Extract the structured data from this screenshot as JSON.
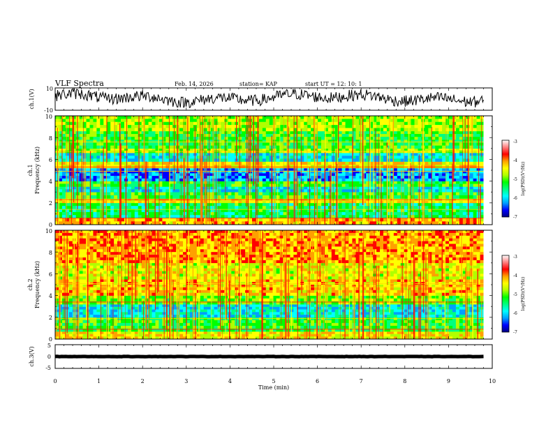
{
  "header": {
    "title": "VLF Spectra",
    "date": "Feb. 14, 2026",
    "station": "station= KAP",
    "start_time": "start  UT =   12: 10: 1"
  },
  "chart_data": [
    {
      "type": "line",
      "name": "ch1-waveform",
      "ylabel": "ch.1(V)",
      "ylim": [
        -10,
        10
      ],
      "yticks": [
        "10",
        "-10"
      ],
      "xlim": [
        0,
        10
      ],
      "data_extent_min": 9.8,
      "series": [
        {
          "name": "ch.1",
          "color": "#000000",
          "mean": 1,
          "amplitude": 8
        }
      ]
    },
    {
      "type": "heatmap",
      "name": "ch1-spectrogram",
      "ylabel_line1": "ch.1",
      "ylabel_line2": "Frequency (kHz)",
      "ylim": [
        0,
        10
      ],
      "yticks": [
        "0",
        "2",
        "4",
        "6",
        "8",
        "10"
      ],
      "xlim": [
        0,
        10
      ],
      "data_extent_min": 9.8,
      "colorbar": {
        "label": "log(PSD)(V²/Hz)",
        "range": [
          -7,
          -3
        ],
        "ticks": [
          "-3",
          "-4",
          "-5",
          "-6",
          "-7"
        ]
      },
      "bands": [
        {
          "from_khz": 0.0,
          "to_khz": 0.6,
          "level": 0.68
        },
        {
          "from_khz": 0.6,
          "to_khz": 2.0,
          "level": 0.4
        },
        {
          "from_khz": 2.0,
          "to_khz": 2.4,
          "level": 0.62
        },
        {
          "from_khz": 2.4,
          "to_khz": 3.0,
          "level": 0.45
        },
        {
          "from_khz": 3.0,
          "to_khz": 3.5,
          "level": 0.3
        },
        {
          "from_khz": 3.5,
          "to_khz": 4.0,
          "level": 0.45
        },
        {
          "from_khz": 4.0,
          "to_khz": 5.2,
          "level": 0.22
        },
        {
          "from_khz": 5.2,
          "to_khz": 5.8,
          "level": 0.62
        },
        {
          "from_khz": 5.8,
          "to_khz": 6.6,
          "level": 0.3
        },
        {
          "from_khz": 6.6,
          "to_khz": 7.0,
          "level": 0.55
        },
        {
          "from_khz": 7.0,
          "to_khz": 8.6,
          "level": 0.45
        },
        {
          "from_khz": 8.6,
          "to_khz": 10.0,
          "level": 0.55
        }
      ],
      "lines_khz": [
        0.6,
        1.4,
        2.1,
        2.3,
        4.9,
        5.3,
        6.7,
        7.6
      ]
    },
    {
      "type": "heatmap",
      "name": "ch2-spectrogram",
      "ylabel_line1": "ch.2",
      "ylabel_line2": "Frequency (kHz)",
      "ylim": [
        0,
        10
      ],
      "yticks": [
        "0",
        "2",
        "4",
        "6",
        "8",
        "10"
      ],
      "xlim": [
        0,
        10
      ],
      "data_extent_min": 9.8,
      "colorbar": {
        "label": "log(PSD)(V²/Hz)",
        "range": [
          -7,
          -3
        ],
        "ticks": [
          "-3",
          "-4",
          "-5",
          "-6",
          "-7"
        ]
      },
      "bands": [
        {
          "from_khz": 0.0,
          "to_khz": 0.7,
          "level": 0.62
        },
        {
          "from_khz": 0.7,
          "to_khz": 2.0,
          "level": 0.45
        },
        {
          "from_khz": 2.0,
          "to_khz": 3.2,
          "level": 0.3
        },
        {
          "from_khz": 3.2,
          "to_khz": 4.0,
          "level": 0.5
        },
        {
          "from_khz": 4.0,
          "to_khz": 5.5,
          "level": 0.66
        },
        {
          "from_khz": 5.5,
          "to_khz": 7.0,
          "level": 0.6
        },
        {
          "from_khz": 7.0,
          "to_khz": 10.0,
          "level": 0.7
        }
      ],
      "lines_khz": [
        0.9,
        1.9,
        3.4,
        4.8,
        5.1
      ]
    },
    {
      "type": "line",
      "name": "ch3-waveform",
      "ylabel": "ch.3(V)",
      "ylim": [
        -5,
        5
      ],
      "yticks": [
        "5",
        "0",
        "-5"
      ],
      "xlim": [
        0,
        10
      ],
      "data_extent_min": 9.8,
      "series": [
        {
          "name": "ch.3",
          "color": "#000000",
          "mean": 0,
          "amplitude": 0.5
        }
      ]
    }
  ],
  "x_axis": {
    "label": "Time (min)",
    "ticks": [
      "0",
      "1",
      "2",
      "3",
      "4",
      "5",
      "6",
      "7",
      "8",
      "9",
      "10"
    ]
  },
  "colormap": [
    "#000080",
    "#0000ff",
    "#00a0ff",
    "#00ffff",
    "#00ff80",
    "#00ff00",
    "#b0ff00",
    "#ffff00",
    "#ffa000",
    "#ff0000",
    "#ff8080",
    "#ffffff"
  ]
}
